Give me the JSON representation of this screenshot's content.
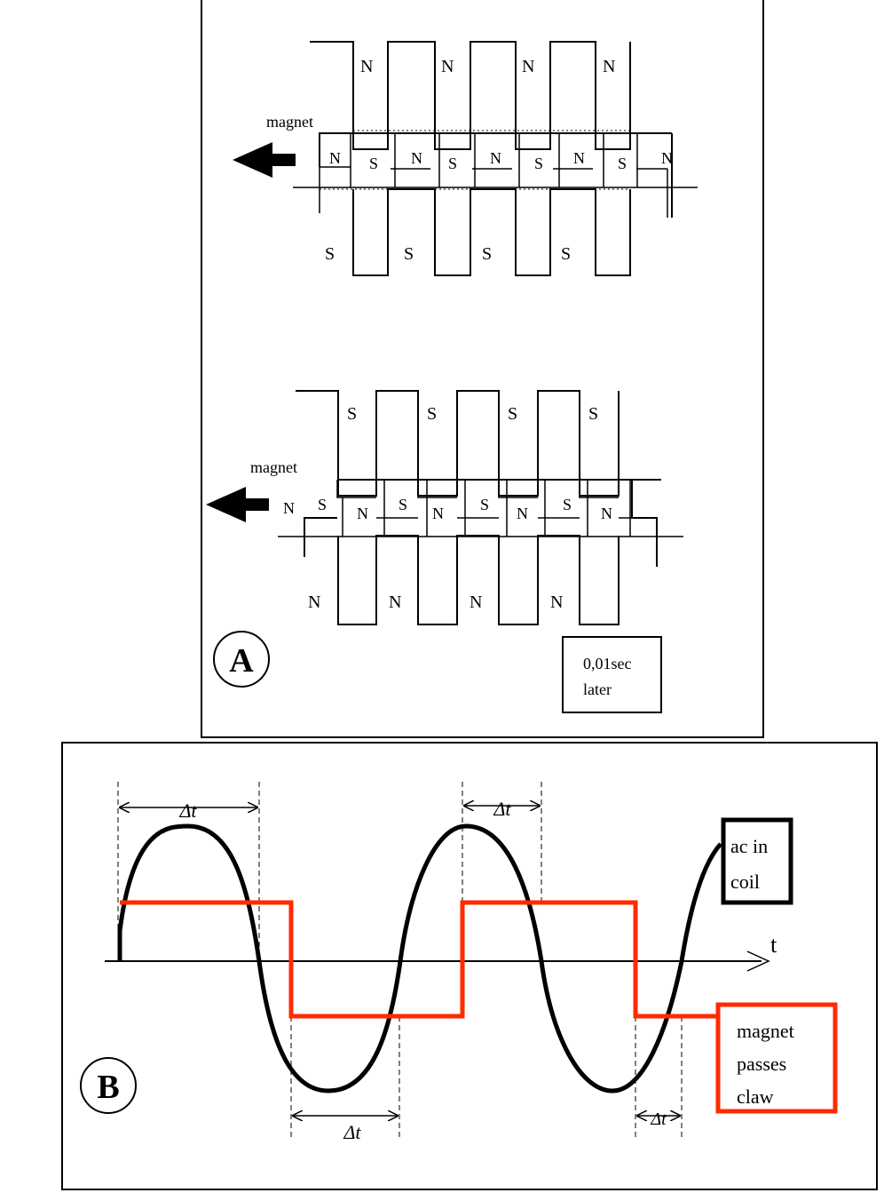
{
  "panel_a": {
    "panel_label": "A",
    "top_diagram": {
      "magnet_label": "magnet",
      "upper_claws": [
        "N",
        "N",
        "N",
        "N"
      ],
      "middle_row": [
        "N",
        "S",
        "N",
        "S",
        "N",
        "S",
        "N",
        "S",
        "N"
      ],
      "lower_claws": [
        "S",
        "S",
        "S",
        "S"
      ]
    },
    "bottom_diagram": {
      "magnet_label": "magnet",
      "upper_claws": [
        "S",
        "S",
        "S",
        "S"
      ],
      "middle_row": [
        "N",
        "S",
        "N",
        "S",
        "N",
        "S",
        "N",
        "S",
        "N"
      ],
      "lower_claws": [
        "N",
        "N",
        "N",
        "N"
      ]
    },
    "time_note": [
      "0,01sec",
      "later"
    ]
  },
  "panel_b": {
    "panel_label": "B",
    "axis_label": "t",
    "delta_label": "Δt",
    "coil_label": [
      "ac in",
      "coil"
    ],
    "magnet_label": [
      "magnet",
      "passes",
      "claw"
    ],
    "colors": {
      "ac_wave": "#000000",
      "magnet_wave": "#ff2a00"
    }
  }
}
